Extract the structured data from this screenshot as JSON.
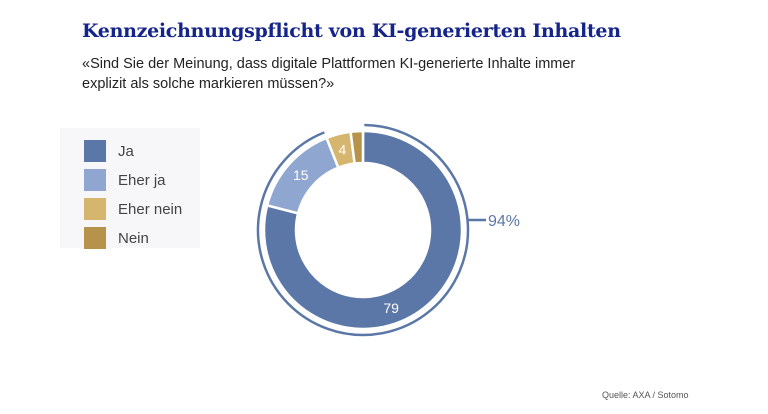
{
  "title": "Kennzeichnungspflicht von KI-generierten Inhalten",
  "subtitle": "«Sind Sie der Meinung, dass digitale Plattformen KI-generierte Inhalte immer explizit als solche markieren müssen?»",
  "source": "Quelle: AXA / Sotomo",
  "chart_data": {
    "type": "pie",
    "title": "Kennzeichnungspflicht von KI-generierten Inhalten",
    "categories": [
      "Ja",
      "Eher ja",
      "Eher nein",
      "Nein"
    ],
    "values": [
      79,
      15,
      4,
      2
    ],
    "labels": [
      "79",
      "15",
      "4",
      ""
    ],
    "colors": [
      "#5b77a8",
      "#8fa6d0",
      "#d6b66e",
      "#b5934a"
    ],
    "bracket": {
      "label": "94%",
      "value": 94
    },
    "legend": "left"
  }
}
